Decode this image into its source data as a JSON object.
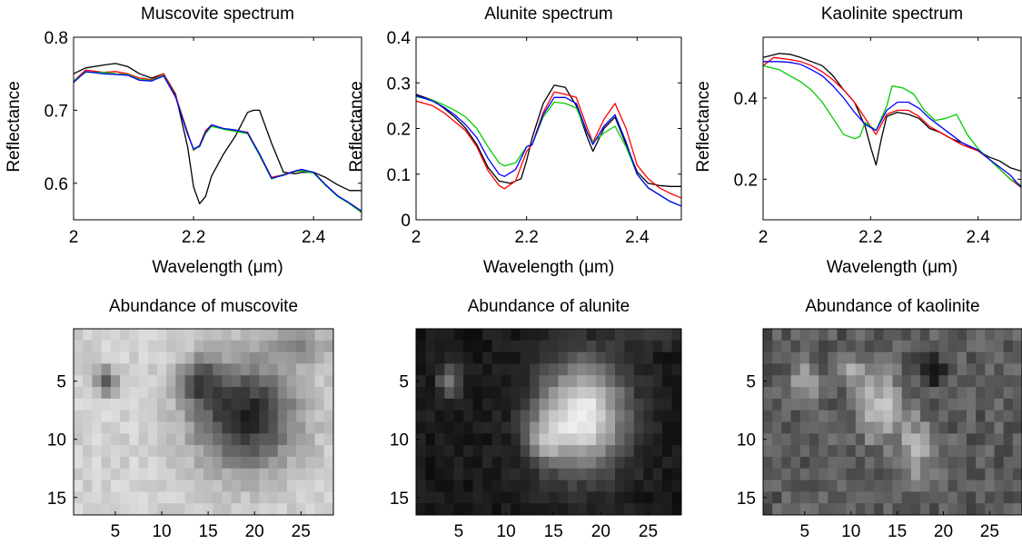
{
  "chart_data": [
    {
      "type": "line",
      "title": "Muscovite spectrum",
      "xlabel": "Wavelength (μm)",
      "ylabel": "Reflectance",
      "xlim": [
        2.0,
        2.48
      ],
      "ylim": [
        0.55,
        0.8
      ],
      "xticks": [
        2,
        2.2,
        2.4
      ],
      "xtick_labels": [
        "2",
        "2.2",
        "2.4"
      ],
      "yticks": [
        0.6,
        0.7,
        0.8
      ],
      "ytick_labels": [
        "0.6",
        "0.7",
        "0.8"
      ],
      "series": [
        {
          "color": "#000000",
          "x": [
            2.0,
            2.02,
            2.05,
            2.07,
            2.09,
            2.11,
            2.13,
            2.15,
            2.17,
            2.19,
            2.2,
            2.21,
            2.22,
            2.23,
            2.25,
            2.27,
            2.29,
            2.3,
            2.31,
            2.33,
            2.35,
            2.37,
            2.38,
            2.4,
            2.42,
            2.44,
            2.46,
            2.48
          ],
          "y": [
            0.75,
            0.758,
            0.762,
            0.764,
            0.76,
            0.75,
            0.744,
            0.75,
            0.722,
            0.65,
            0.595,
            0.572,
            0.582,
            0.61,
            0.64,
            0.665,
            0.697,
            0.7,
            0.7,
            0.655,
            0.615,
            0.613,
            0.615,
            0.615,
            0.608,
            0.598,
            0.59,
            0.59
          ]
        },
        {
          "color": "#ff0000",
          "x": [
            2.0,
            2.02,
            2.05,
            2.07,
            2.09,
            2.11,
            2.13,
            2.15,
            2.17,
            2.19,
            2.2,
            2.21,
            2.22,
            2.23,
            2.25,
            2.27,
            2.29,
            2.31,
            2.33,
            2.35,
            2.37,
            2.38,
            2.4,
            2.42,
            2.44,
            2.46,
            2.48
          ],
          "y": [
            0.74,
            0.755,
            0.752,
            0.753,
            0.75,
            0.744,
            0.742,
            0.75,
            0.72,
            0.67,
            0.645,
            0.652,
            0.672,
            0.68,
            0.675,
            0.672,
            0.67,
            0.64,
            0.608,
            0.612,
            0.617,
            0.618,
            0.615,
            0.598,
            0.583,
            0.572,
            0.56
          ]
        },
        {
          "color": "#00cc00",
          "x": [
            2.0,
            2.02,
            2.05,
            2.07,
            2.09,
            2.11,
            2.13,
            2.15,
            2.17,
            2.19,
            2.2,
            2.21,
            2.22,
            2.23,
            2.25,
            2.27,
            2.29,
            2.31,
            2.33,
            2.35,
            2.37,
            2.38,
            2.4,
            2.42,
            2.44,
            2.46,
            2.48
          ],
          "y": [
            0.74,
            0.752,
            0.752,
            0.75,
            0.749,
            0.742,
            0.741,
            0.748,
            0.718,
            0.668,
            0.646,
            0.65,
            0.668,
            0.678,
            0.674,
            0.671,
            0.668,
            0.638,
            0.606,
            0.612,
            0.616,
            0.617,
            0.614,
            0.597,
            0.582,
            0.572,
            0.56
          ]
        },
        {
          "color": "#0000ff",
          "x": [
            2.0,
            2.02,
            2.05,
            2.07,
            2.09,
            2.11,
            2.13,
            2.15,
            2.17,
            2.19,
            2.2,
            2.21,
            2.22,
            2.23,
            2.25,
            2.27,
            2.29,
            2.31,
            2.33,
            2.35,
            2.37,
            2.38,
            2.4,
            2.42,
            2.44,
            2.46,
            2.48
          ],
          "y": [
            0.738,
            0.753,
            0.75,
            0.749,
            0.748,
            0.741,
            0.74,
            0.747,
            0.718,
            0.667,
            0.647,
            0.651,
            0.67,
            0.68,
            0.675,
            0.673,
            0.669,
            0.64,
            0.607,
            0.611,
            0.617,
            0.619,
            0.615,
            0.598,
            0.583,
            0.573,
            0.562
          ]
        }
      ]
    },
    {
      "type": "line",
      "title": "Alunite spectrum",
      "xlabel": "Wavelength (μm)",
      "ylabel": "Reflectance",
      "xlim": [
        2.0,
        2.48
      ],
      "ylim": [
        0,
        0.4
      ],
      "xticks": [
        2,
        2.2,
        2.4
      ],
      "xtick_labels": [
        "2",
        "2.2",
        "2.4"
      ],
      "yticks": [
        0,
        0.1,
        0.2,
        0.3,
        0.4
      ],
      "ytick_labels": [
        "0",
        "0.1",
        "0.2",
        "0.3",
        "0.4"
      ],
      "series": [
        {
          "color": "#000000",
          "x": [
            2.0,
            2.03,
            2.05,
            2.07,
            2.09,
            2.11,
            2.13,
            2.15,
            2.17,
            2.19,
            2.2,
            2.21,
            2.23,
            2.25,
            2.27,
            2.29,
            2.31,
            2.32,
            2.34,
            2.36,
            2.38,
            2.4,
            2.42,
            2.44,
            2.46,
            2.48
          ],
          "y": [
            0.275,
            0.262,
            0.245,
            0.225,
            0.2,
            0.165,
            0.115,
            0.085,
            0.08,
            0.09,
            0.13,
            0.18,
            0.255,
            0.295,
            0.29,
            0.25,
            0.18,
            0.15,
            0.2,
            0.225,
            0.165,
            0.105,
            0.08,
            0.075,
            0.073,
            0.073
          ]
        },
        {
          "color": "#ff0000",
          "x": [
            2.0,
            2.03,
            2.05,
            2.07,
            2.09,
            2.11,
            2.13,
            2.15,
            2.16,
            2.18,
            2.2,
            2.21,
            2.23,
            2.25,
            2.27,
            2.29,
            2.31,
            2.32,
            2.34,
            2.36,
            2.38,
            2.4,
            2.42,
            2.44,
            2.46,
            2.48
          ],
          "y": [
            0.26,
            0.25,
            0.235,
            0.215,
            0.195,
            0.16,
            0.108,
            0.075,
            0.068,
            0.085,
            0.15,
            0.165,
            0.235,
            0.28,
            0.275,
            0.268,
            0.2,
            0.17,
            0.22,
            0.255,
            0.2,
            0.12,
            0.09,
            0.07,
            0.058,
            0.048
          ]
        },
        {
          "color": "#00cc00",
          "x": [
            2.0,
            2.03,
            2.05,
            2.07,
            2.09,
            2.11,
            2.13,
            2.15,
            2.16,
            2.18,
            2.2,
            2.21,
            2.23,
            2.25,
            2.27,
            2.29,
            2.31,
            2.32,
            2.34,
            2.36,
            2.38,
            2.4,
            2.42,
            2.44,
            2.46,
            2.48
          ],
          "y": [
            0.27,
            0.262,
            0.252,
            0.24,
            0.225,
            0.2,
            0.16,
            0.125,
            0.118,
            0.125,
            0.16,
            0.165,
            0.225,
            0.258,
            0.255,
            0.245,
            0.19,
            0.17,
            0.19,
            0.205,
            0.16,
            0.1,
            0.07,
            0.055,
            0.04,
            0.03
          ]
        },
        {
          "color": "#0000ff",
          "x": [
            2.0,
            2.03,
            2.05,
            2.07,
            2.09,
            2.11,
            2.13,
            2.15,
            2.16,
            2.18,
            2.2,
            2.21,
            2.23,
            2.25,
            2.27,
            2.29,
            2.31,
            2.32,
            2.34,
            2.36,
            2.38,
            2.4,
            2.42,
            2.44,
            2.46,
            2.48
          ],
          "y": [
            0.272,
            0.26,
            0.247,
            0.23,
            0.208,
            0.18,
            0.135,
            0.1,
            0.095,
            0.11,
            0.16,
            0.165,
            0.23,
            0.268,
            0.268,
            0.255,
            0.19,
            0.165,
            0.205,
            0.23,
            0.17,
            0.1,
            0.07,
            0.055,
            0.04,
            0.03
          ]
        }
      ]
    },
    {
      "type": "line",
      "title": "Kaolinite spectrum",
      "xlabel": "Wavelength (μm)",
      "ylabel": "Reflectance",
      "xlim": [
        2.0,
        2.48
      ],
      "ylim": [
        0.1,
        0.55
      ],
      "xticks": [
        2,
        2.2,
        2.4
      ],
      "xtick_labels": [
        "2",
        "2.2",
        "2.4"
      ],
      "yticks": [
        0.2,
        0.4
      ],
      "ytick_labels": [
        "0.2",
        "0.4"
      ],
      "series": [
        {
          "color": "#000000",
          "x": [
            2.0,
            2.03,
            2.05,
            2.07,
            2.09,
            2.11,
            2.13,
            2.15,
            2.17,
            2.19,
            2.2,
            2.21,
            2.22,
            2.23,
            2.25,
            2.27,
            2.29,
            2.31,
            2.33,
            2.35,
            2.37,
            2.4,
            2.42,
            2.44,
            2.46,
            2.48
          ],
          "y": [
            0.5,
            0.51,
            0.508,
            0.5,
            0.49,
            0.48,
            0.455,
            0.42,
            0.39,
            0.33,
            0.28,
            0.235,
            0.3,
            0.355,
            0.365,
            0.36,
            0.35,
            0.325,
            0.315,
            0.3,
            0.29,
            0.27,
            0.255,
            0.245,
            0.228,
            0.22
          ]
        },
        {
          "color": "#ff0000",
          "x": [
            2.0,
            2.02,
            2.05,
            2.07,
            2.09,
            2.11,
            2.13,
            2.15,
            2.17,
            2.19,
            2.21,
            2.23,
            2.25,
            2.27,
            2.29,
            2.31,
            2.33,
            2.35,
            2.37,
            2.4,
            2.42,
            2.44,
            2.46,
            2.48
          ],
          "y": [
            0.48,
            0.5,
            0.495,
            0.49,
            0.48,
            0.465,
            0.445,
            0.42,
            0.39,
            0.35,
            0.31,
            0.36,
            0.37,
            0.37,
            0.355,
            0.33,
            0.315,
            0.3,
            0.285,
            0.27,
            0.25,
            0.225,
            0.2,
            0.18
          ]
        },
        {
          "color": "#00cc00",
          "x": [
            2.0,
            2.03,
            2.05,
            2.07,
            2.09,
            2.11,
            2.13,
            2.15,
            2.17,
            2.18,
            2.19,
            2.21,
            2.23,
            2.24,
            2.26,
            2.28,
            2.3,
            2.32,
            2.34,
            2.36,
            2.38,
            2.4,
            2.42,
            2.44,
            2.46,
            2.48
          ],
          "y": [
            0.48,
            0.47,
            0.455,
            0.44,
            0.42,
            0.39,
            0.35,
            0.31,
            0.3,
            0.305,
            0.34,
            0.32,
            0.38,
            0.43,
            0.425,
            0.41,
            0.37,
            0.345,
            0.35,
            0.36,
            0.31,
            0.275,
            0.25,
            0.225,
            0.2,
            0.185
          ]
        },
        {
          "color": "#0000ff",
          "x": [
            2.0,
            2.03,
            2.05,
            2.07,
            2.09,
            2.11,
            2.13,
            2.15,
            2.17,
            2.19,
            2.21,
            2.23,
            2.25,
            2.27,
            2.29,
            2.31,
            2.33,
            2.35,
            2.37,
            2.4,
            2.42,
            2.44,
            2.46,
            2.48
          ],
          "y": [
            0.49,
            0.49,
            0.488,
            0.483,
            0.47,
            0.455,
            0.43,
            0.4,
            0.365,
            0.335,
            0.32,
            0.37,
            0.39,
            0.39,
            0.375,
            0.35,
            0.33,
            0.31,
            0.29,
            0.272,
            0.25,
            0.23,
            0.21,
            0.18
          ]
        }
      ]
    },
    {
      "type": "heatmap",
      "title": "Abundance of muscovite",
      "colormap": "gray",
      "xticks": [
        5,
        10,
        15,
        20,
        25
      ],
      "xtick_labels": [
        "5",
        "10",
        "15",
        "20",
        "25"
      ],
      "yticks": [
        5,
        10,
        15
      ],
      "ytick_labels": [
        "5",
        "10",
        "15"
      ],
      "n_cols": 28,
      "n_rows": 16
    },
    {
      "type": "heatmap",
      "title": "Abundance of alunite",
      "colormap": "gray",
      "xticks": [
        5,
        10,
        15,
        20,
        25
      ],
      "xtick_labels": [
        "5",
        "10",
        "15",
        "20",
        "25"
      ],
      "yticks": [
        5,
        10,
        15
      ],
      "ytick_labels": [
        "5",
        "10",
        "15"
      ],
      "n_cols": 28,
      "n_rows": 16
    },
    {
      "type": "heatmap",
      "title": "Abundance of kaolinite",
      "colormap": "gray",
      "xticks": [
        5,
        10,
        15,
        20,
        25
      ],
      "xtick_labels": [
        "5",
        "10",
        "15",
        "20",
        "25"
      ],
      "yticks": [
        5,
        10,
        15
      ],
      "ytick_labels": [
        "5",
        "10",
        "15"
      ],
      "n_cols": 28,
      "n_rows": 16
    }
  ]
}
